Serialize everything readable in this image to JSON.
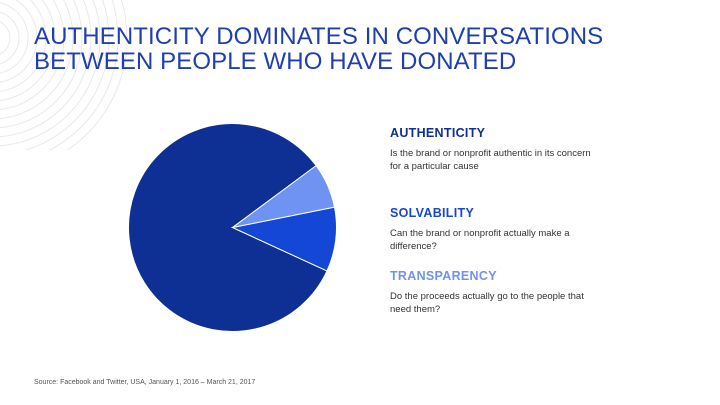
{
  "colors": {
    "title": "#1f3fae",
    "deco_lines": "#e9e9e9",
    "slice_authenticity": "#0e2f94",
    "slice_solvability": "#1547d6",
    "slice_transparency": "#6f93f2",
    "slice_border": "#ffffff"
  },
  "header": {
    "title_line1": "AUTHENTICITY DOMINATES IN CONVERSATIONS",
    "title_line2": "BETWEEN PEOPLE WHO HAVE DONATED"
  },
  "chart_data": {
    "type": "pie",
    "title": "",
    "slices": [
      {
        "label": "AUTHENTICITY",
        "value": 83
      },
      {
        "label": "SOLVABILITY",
        "value": 10
      },
      {
        "label": "TRANSPARENCY",
        "value": 7
      }
    ],
    "legend_placement": "right"
  },
  "legend": [
    {
      "heading": "AUTHENTICITY",
      "description_line1": "Is the brand or nonprofit authentic in its concern",
      "description_line2": "for a particular cause"
    },
    {
      "heading": "SOLVABILITY",
      "description_line1": "Can the brand or nonprofit actually make a",
      "description_line2": "difference?"
    },
    {
      "heading": "TRANSPARENCY",
      "description_line1": "Do the proceeds actually go to the people that",
      "description_line2": "need them?"
    }
  ],
  "footer": {
    "source": "Source: Facebook and Twitter, USA, January 1, 2016 – March 21, 2017"
  }
}
